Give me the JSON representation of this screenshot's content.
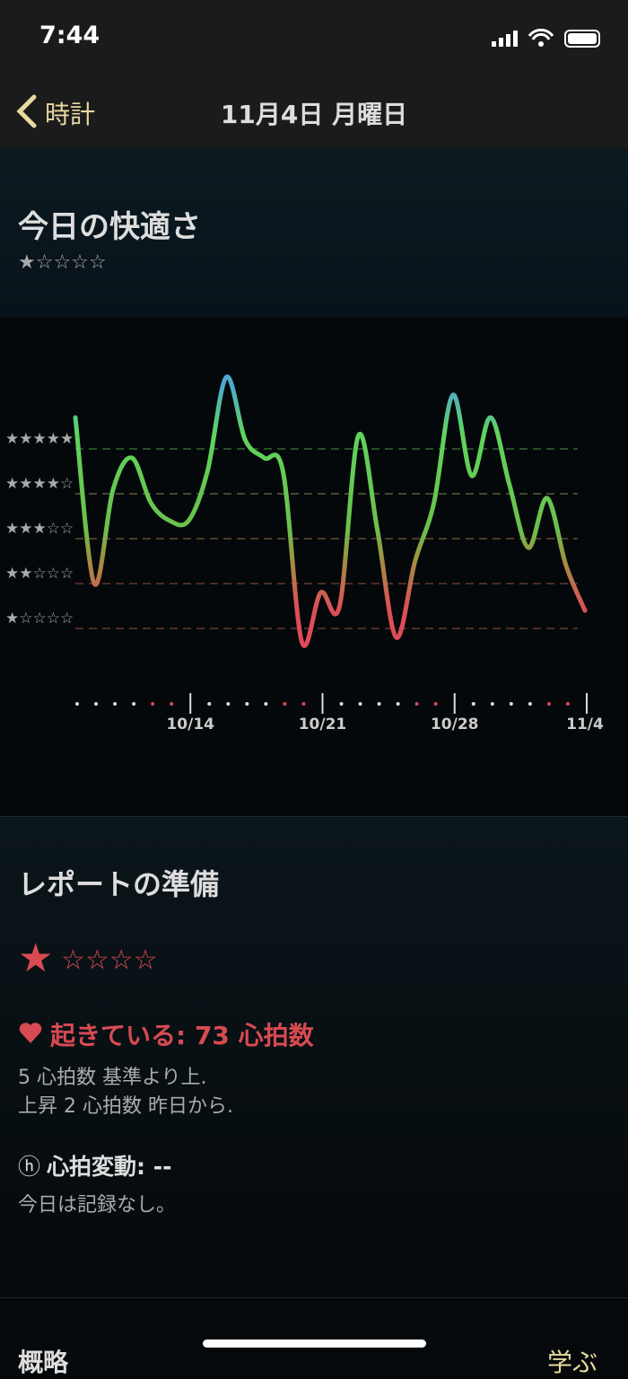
{
  "status_bar": {
    "time": "7:44"
  },
  "nav": {
    "back": "時計",
    "title": "11月4日 月曜日"
  },
  "comfort": {
    "title": "今日の快適さ",
    "rating": "★☆☆☆☆"
  },
  "chart_data": {
    "type": "line",
    "x": [
      null,
      null,
      null,
      null,
      null,
      null,
      "10/14",
      null,
      null,
      null,
      null,
      null,
      null,
      "10/21",
      null,
      null,
      null,
      null,
      null,
      null,
      "10/28",
      null,
      null,
      null,
      null,
      null,
      null,
      "11/4"
    ],
    "values": [
      5.7,
      2.0,
      4.1,
      4.8,
      3.8,
      3.4,
      3.4,
      4.5,
      6.6,
      5.2,
      4.8,
      4.5,
      0.7,
      1.8,
      1.5,
      5.3,
      3.2,
      0.8,
      2.5,
      3.8,
      6.2,
      4.4,
      5.7,
      4.2,
      2.8,
      3.9,
      2.4,
      1.4
    ],
    "ylim": [
      0,
      7
    ],
    "yticks": [
      {
        "value": 1,
        "label": "★☆☆☆☆"
      },
      {
        "value": 2,
        "label": "★★☆☆☆"
      },
      {
        "value": 3,
        "label": "★★★☆☆"
      },
      {
        "value": 4,
        "label": "★★★★☆"
      },
      {
        "value": 5,
        "label": "★★★★★"
      }
    ],
    "grid": true
  },
  "report": {
    "title": "レポートの準備",
    "rating_filled": "★",
    "rating_empty": "☆☆☆☆",
    "awake": "起きている: 73 心拍数",
    "details": [
      "5 心拍数 基準より上.",
      "上昇 2 心拍数 昨日から."
    ],
    "hrv_icon": "ⓗ",
    "hrv": "心拍変動: --",
    "hrv_note": "今日は記録なし。"
  },
  "footer": {
    "left": "概略",
    "right": "学ぶ"
  }
}
